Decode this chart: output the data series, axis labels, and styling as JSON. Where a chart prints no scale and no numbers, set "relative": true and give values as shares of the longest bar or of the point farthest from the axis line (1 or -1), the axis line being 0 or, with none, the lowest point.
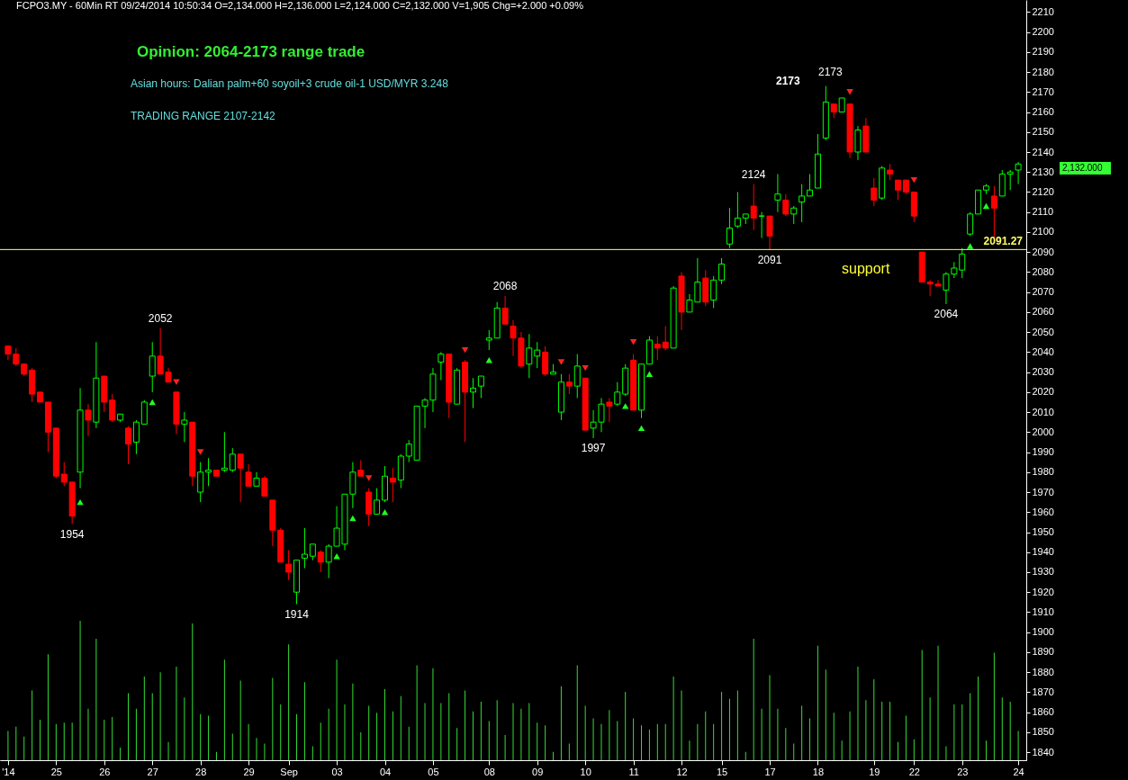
{
  "chart_data": [
    {
      "type": "candlestick",
      "title": "Opinion: 2064-2173 range trade",
      "subtitle": "Asian hours: Dalian palm+60 soyoil+3 crude oil-1 USD/MYR 3.248",
      "annotations": [
        "FCPO3.MY - 60Min RT  09/24/2014  10:50:34   O=2,134.000   H=2,136.000   L=2,124.000   C=2,132.000   V=1,905   Chg=+2.000   +0.09%",
        "TRADING RANGE 2107-2142",
        {
          "text": "1954",
          "y": 1954
        },
        {
          "text": "2052",
          "y": 2052
        },
        {
          "text": "1914",
          "y": 1914
        },
        {
          "text": "2068",
          "y": 2068
        },
        {
          "text": "1997",
          "y": 1997
        },
        {
          "text": "2124",
          "y": 2124
        },
        {
          "text": "2091",
          "y": 2091
        },
        "2173",
        "2173",
        {
          "text": "2064",
          "y": 2064
        },
        "support",
        "2,132.000"
      ],
      "categories": [
        "'14",
        null,
        null,
        null,
        null,
        null,
        "25",
        null,
        null,
        null,
        null,
        null,
        "26",
        null,
        null,
        null,
        null,
        null,
        "27",
        null,
        null,
        null,
        null,
        null,
        "28",
        null,
        null,
        null,
        null,
        null,
        "29",
        null,
        null,
        null,
        null,
        "Sep",
        null,
        null,
        null,
        null,
        null,
        "03",
        null,
        null,
        null,
        null,
        null,
        "04",
        null,
        null,
        null,
        null,
        null,
        "05",
        null,
        null,
        null,
        null,
        null,
        null,
        "08",
        null,
        null,
        null,
        null,
        null,
        "09",
        null,
        null,
        null,
        null,
        null,
        "10",
        null,
        null,
        null,
        null,
        null,
        "11",
        null,
        null,
        null,
        null,
        null,
        "12",
        null,
        null,
        null,
        null,
        "15",
        null,
        null,
        null,
        null,
        null,
        "17",
        null,
        null,
        null,
        null,
        null,
        "18",
        null,
        null,
        null,
        null,
        null,
        null,
        "19",
        null,
        null,
        null,
        null,
        "22",
        null,
        null,
        null,
        null,
        null,
        "23",
        null,
        null,
        null,
        null,
        null,
        null,
        "24"
      ],
      "ohlc": [
        [
          2043,
          2043,
          2036,
          2039
        ],
        [
          2039,
          2042,
          2033,
          2034
        ],
        [
          2034,
          2034,
          2028,
          2029
        ],
        [
          2031,
          2032,
          2015,
          2019
        ],
        [
          2020,
          2020,
          2015,
          2015
        ],
        [
          2015,
          2015,
          1990,
          2000
        ],
        [
          2002,
          2002,
          1977,
          1978
        ],
        [
          1979,
          1985,
          1973,
          1975
        ],
        [
          1975,
          1975,
          1954,
          1958
        ],
        [
          1980,
          2022,
          1972,
          2011
        ],
        [
          2011,
          2014,
          1998,
          2006
        ],
        [
          2005,
          2045,
          2002,
          2027
        ],
        [
          2028,
          2028,
          2010,
          2015
        ],
        [
          2016,
          2019,
          2005,
          2006
        ],
        [
          2006,
          2009,
          2005,
          2009
        ],
        [
          2002,
          2003,
          1984,
          1994
        ],
        [
          1995,
          2006,
          1989,
          2005
        ],
        [
          2004,
          2016,
          2004,
          2015
        ],
        [
          2028,
          2045,
          2020,
          2038
        ],
        [
          2038,
          2052,
          2029,
          2029
        ],
        [
          2030,
          2032,
          2025,
          2025
        ],
        [
          2020,
          2020,
          1999,
          2004
        ],
        [
          2004,
          2010,
          1995,
          2006
        ],
        [
          2005,
          2005,
          1973,
          1978
        ],
        [
          1970,
          1985,
          1965,
          1980
        ],
        [
          1980,
          1987,
          1973,
          1981
        ],
        [
          1981,
          1981,
          1978,
          1978
        ],
        [
          1981,
          2000,
          1980,
          1982
        ],
        [
          1981,
          1992,
          1980,
          1989
        ],
        [
          1989,
          1989,
          1965,
          1982
        ],
        [
          1980,
          1984,
          1973,
          1973
        ],
        [
          1973,
          1980,
          1973,
          1977
        ],
        [
          1977,
          1978,
          1968,
          1968
        ],
        [
          1966,
          1966,
          1943,
          1951
        ],
        [
          1951,
          1952,
          1935,
          1935
        ],
        [
          1934,
          1941,
          1926,
          1930
        ],
        [
          1920,
          1936,
          1914,
          1936
        ],
        [
          1937,
          1952,
          1932,
          1939
        ],
        [
          1938,
          1944,
          1936,
          1944
        ],
        [
          1940,
          1941,
          1930,
          1935
        ],
        [
          1935,
          1944,
          1927,
          1943
        ],
        [
          1943,
          1963,
          1943,
          1952
        ],
        [
          1944,
          1969,
          1941,
          1969
        ],
        [
          1969,
          1985,
          1962,
          1980
        ],
        [
          1981,
          1986,
          1978,
          1978
        ],
        [
          1970,
          1972,
          1953,
          1959
        ],
        [
          1959,
          1972,
          1959,
          1966
        ],
        [
          1966,
          1983,
          1965,
          1978
        ],
        [
          1977,
          1982,
          1965,
          1975
        ],
        [
          1976,
          1989,
          1972,
          1988
        ],
        [
          1988,
          1996,
          1985,
          1994
        ],
        [
          1986,
          2013,
          1986,
          2013
        ],
        [
          2013,
          2017,
          2002,
          2016
        ],
        [
          2016,
          2032,
          2010,
          2029
        ],
        [
          2035,
          2040,
          2026,
          2039
        ],
        [
          2039,
          2039,
          2007,
          2015
        ],
        [
          2014,
          2032,
          2014,
          2031
        ],
        [
          2035,
          2036,
          1995,
          2020
        ],
        [
          2020,
          2027,
          2012,
          2022
        ],
        [
          2023,
          2028,
          2017,
          2028
        ],
        [
          2046,
          2051,
          2041,
          2047
        ],
        [
          2047,
          2065,
          2047,
          2062
        ],
        [
          2062,
          2068,
          2054,
          2054
        ],
        [
          2053,
          2056,
          2038,
          2047
        ],
        [
          2047,
          2050,
          2032,
          2033
        ],
        [
          2034,
          2049,
          2027,
          2042
        ],
        [
          2038,
          2045,
          2032,
          2041
        ],
        [
          2040,
          2043,
          2028,
          2029
        ],
        [
          2029,
          2034,
          2029,
          2030
        ],
        [
          2010,
          2029,
          2006,
          2025
        ],
        [
          2025,
          2029,
          2019,
          2023
        ],
        [
          2023,
          2039,
          2017,
          2033
        ],
        [
          2027,
          2027,
          2001,
          2001
        ],
        [
          2002,
          2011,
          1997,
          2005
        ],
        [
          2005,
          2017,
          2000,
          2014
        ],
        [
          2015,
          2017,
          2005,
          2013
        ],
        [
          2014,
          2025,
          2013,
          2020
        ],
        [
          2019,
          2034,
          2018,
          2032
        ],
        [
          2036,
          2039,
          2011,
          2011
        ],
        [
          2011,
          2034,
          2007,
          2034
        ],
        [
          2034,
          2048,
          2034,
          2046
        ],
        [
          2044,
          2048,
          2036,
          2042
        ],
        [
          2045,
          2053,
          2041,
          2042
        ],
        [
          2042,
          2073,
          2042,
          2072
        ],
        [
          2078,
          2080,
          2051,
          2060
        ],
        [
          2060,
          2069,
          2060,
          2066
        ],
        [
          2065,
          2087,
          2065,
          2075
        ],
        [
          2077,
          2081,
          2063,
          2065
        ],
        [
          2066,
          2078,
          2062,
          2076
        ],
        [
          2076,
          2087,
          2074,
          2084
        ],
        [
          2094,
          2112,
          2092,
          2102
        ],
        [
          2103,
          2120,
          2102,
          2107
        ],
        [
          2107,
          2109,
          2104,
          2109
        ],
        [
          2113,
          2124,
          2101,
          2107
        ],
        [
          2108,
          2110,
          2097,
          2108
        ],
        [
          2108,
          2108,
          2091,
          2098
        ],
        [
          2116,
          2129,
          2110,
          2119
        ],
        [
          2116,
          2119,
          2108,
          2109
        ],
        [
          2109,
          2113,
          2104,
          2112
        ],
        [
          2115,
          2124,
          2105,
          2118
        ],
        [
          2118,
          2129,
          2118,
          2121
        ],
        [
          2122,
          2149,
          2122,
          2139
        ],
        [
          2147,
          2173,
          2146,
          2165
        ],
        [
          2164,
          2164,
          2157,
          2160
        ],
        [
          2160,
          2167,
          2160,
          2167
        ],
        [
          2164,
          2164,
          2137,
          2140
        ],
        [
          2140,
          2153,
          2136,
          2151
        ],
        [
          2153,
          2157,
          2140,
          2140
        ],
        [
          2122,
          2127,
          2113,
          2116
        ],
        [
          2117,
          2133,
          2116,
          2132
        ],
        [
          2131,
          2134,
          2126,
          2129
        ],
        [
          2126,
          2126,
          2116,
          2121
        ],
        [
          2126,
          2126,
          2119,
          2120
        ],
        [
          2120,
          2120,
          2105,
          2108
        ],
        [
          2090,
          2090,
          2075,
          2075
        ],
        [
          2075,
          2076,
          2068,
          2074
        ],
        [
          2074,
          2076,
          2073,
          2073
        ],
        [
          2071,
          2080,
          2064,
          2079
        ],
        [
          2079,
          2085,
          2077,
          2082
        ],
        [
          2081,
          2092,
          2077,
          2089
        ],
        [
          2099,
          2110,
          2098,
          2109
        ],
        [
          2109,
          2121,
          2109,
          2121
        ],
        [
          2121,
          2124,
          2119,
          2123
        ],
        [
          2118,
          2123,
          2097,
          2112
        ],
        [
          2118,
          2131,
          2118,
          2129
        ],
        [
          2129,
          2131,
          2121,
          2130
        ],
        [
          2131,
          2135,
          2124,
          2134
        ]
      ],
      "colors": [
        "#ff0000",
        "#ff0000",
        "#ff0000",
        "#ff0000",
        "#ff0000",
        "#ff0000",
        "#ff0000",
        "#ff0000",
        "#ff0000",
        "#00ff00",
        "#ff0000",
        "#00ff00",
        "#ff0000",
        "#ff0000",
        "#00ff00",
        "#ff0000",
        "#00ff00",
        "#00ff00",
        "#00ff00",
        "#ff0000",
        "#ff0000",
        "#ff0000",
        "#00ff00",
        "#ff0000",
        "#00ff00",
        "#00ff00",
        "#ff0000",
        "#00ff00",
        "#00ff00",
        "#ff0000",
        "#ff0000",
        "#00ff00",
        "#ff0000",
        "#ff0000",
        "#ff0000",
        "#ff0000",
        "#00ff00",
        "#00ff00",
        "#00ff00",
        "#ff0000",
        "#00ff00",
        "#00ff00",
        "#00ff00",
        "#00ff00",
        "#ff0000",
        "#ff0000",
        "#00ff00",
        "#00ff00",
        "#ff0000",
        "#00ff00",
        "#00ff00",
        "#00ff00",
        "#00ff00",
        "#00ff00",
        "#00ff00",
        "#ff0000",
        "#00ff00",
        "#ff0000",
        "#00ff00",
        "#00ff00",
        "#00ff00",
        "#00ff00",
        "#ff0000",
        "#ff0000",
        "#ff0000",
        "#00ff00",
        "#00ff00",
        "#ff0000",
        "#00ff00",
        "#00ff00",
        "#ff0000",
        "#00ff00",
        "#ff0000",
        "#00ff00",
        "#00ff00",
        "#ff0000",
        "#00ff00",
        "#00ff00",
        "#ff0000",
        "#00ff00",
        "#00ff00",
        "#ff0000",
        "#ff0000",
        "#00ff00",
        "#ff0000",
        "#00ff00",
        "#00ff00",
        "#ff0000",
        "#00ff00",
        "#00ff00",
        "#00ff00",
        "#00ff00",
        "#00ff00",
        "#ff0000",
        "#00ff00",
        "#ff0000",
        "#00ff00",
        "#ff0000",
        "#00ff00",
        "#00ff00",
        "#00ff00",
        "#00ff00",
        "#00ff00",
        "#ff0000",
        "#00ff00",
        "#ff0000",
        "#00ff00",
        "#ff0000",
        "#ff0000",
        "#00ff00",
        "#ff0000",
        "#ff0000",
        "#ff0000",
        "#ff0000",
        "#ff0000",
        "#ff0000",
        "#ff0000",
        "#00ff00",
        "#00ff00",
        "#00ff00",
        "#00ff00",
        "#00ff00",
        "#00ff00",
        "#ff0000",
        "#00ff00",
        "#00ff00",
        "#00ff00"
      ],
      "series": [
        {
          "type": "scatter",
          "color": "#22ff22",
          "marker": "triangle",
          "values": [
            null,
            null,
            null,
            null,
            null,
            null,
            null,
            null,
            null,
            1965,
            null,
            null,
            null,
            null,
            null,
            null,
            null,
            null,
            2015,
            null,
            null,
            null,
            null,
            null,
            null,
            null,
            null,
            null,
            null,
            null,
            null,
            null,
            null,
            null,
            null,
            null,
            null,
            null,
            null,
            null,
            null,
            1938,
            null,
            1957,
            null,
            null,
            null,
            1960,
            null,
            null,
            null,
            null,
            null,
            null,
            null,
            null,
            null,
            null,
            null,
            null,
            2036,
            null,
            null,
            null,
            null,
            null,
            null,
            null,
            null,
            null,
            null,
            null,
            null,
            null,
            null,
            null,
            null,
            2013,
            null,
            2002,
            2029,
            null,
            null,
            null,
            null,
            null,
            null,
            null,
            null,
            null,
            null,
            null,
            null,
            null,
            null,
            null,
            null,
            null,
            null,
            null,
            null,
            null,
            null,
            null,
            null,
            null,
            null,
            null,
            null,
            null,
            null,
            null,
            null,
            null,
            null,
            null,
            null,
            null,
            null,
            null,
            2093,
            null,
            2113,
            null,
            null,
            null,
            null
          ]
        },
        {
          "type": "scatter",
          "color": "#ff2222",
          "marker": "triangle-down",
          "values": [
            null,
            null,
            null,
            null,
            null,
            null,
            null,
            null,
            null,
            null,
            null,
            null,
            null,
            null,
            null,
            null,
            null,
            null,
            null,
            null,
            null,
            2025,
            null,
            null,
            1990,
            null,
            null,
            null,
            null,
            null,
            null,
            null,
            null,
            null,
            null,
            null,
            null,
            null,
            null,
            null,
            null,
            null,
            null,
            null,
            null,
            1977,
            null,
            null,
            null,
            null,
            null,
            null,
            null,
            null,
            null,
            null,
            null,
            2041,
            null,
            null,
            null,
            null,
            null,
            null,
            null,
            null,
            null,
            null,
            null,
            2035,
            null,
            null,
            2032,
            null,
            null,
            null,
            null,
            null,
            2045,
            null,
            null,
            null,
            null,
            null,
            null,
            null,
            null,
            null,
            null,
            null,
            null,
            null,
            null,
            null,
            null,
            null,
            null,
            null,
            null,
            null,
            null,
            null,
            null,
            null,
            null,
            2170,
            null,
            null,
            null,
            null,
            null,
            null,
            null,
            2126,
            null,
            null,
            null,
            null,
            null,
            null,
            null,
            null,
            null,
            null,
            null,
            null,
            null
          ]
        }
      ],
      "ylim": [
        1836,
        2216
      ],
      "yticks": [
        1840,
        1850,
        1860,
        1870,
        1880,
        1890,
        1900,
        1910,
        1920,
        1930,
        1940,
        1950,
        1960,
        1970,
        1980,
        1990,
        2000,
        2010,
        2020,
        2030,
        2040,
        2050,
        2060,
        2070,
        2080,
        2090,
        2100,
        2110,
        2120,
        2130,
        2140,
        2150,
        2160,
        2170,
        2180,
        2190,
        2200,
        2210
      ],
      "ref_lines": [
        {
          "axis": "y",
          "value": 2091.27,
          "label": "2091.27",
          "color": "#ffff66"
        }
      ]
    },
    {
      "type": "bar",
      "relative": true,
      "color": "#33dd33",
      "categories": [
        null,
        null,
        null,
        null,
        null,
        null,
        null,
        null,
        null,
        null,
        null,
        null,
        null,
        null,
        null,
        null,
        null,
        null,
        null,
        null,
        null,
        null,
        null,
        null,
        null,
        null,
        null,
        null,
        null,
        null,
        null,
        null,
        null,
        null,
        null,
        null,
        null,
        null,
        null,
        null,
        null,
        null,
        null,
        null,
        null,
        null,
        null,
        null,
        null,
        null,
        null,
        null,
        null,
        null,
        null,
        null,
        null,
        null,
        null,
        null,
        null,
        null,
        null,
        null,
        null,
        null,
        null,
        null,
        null,
        null,
        null,
        null,
        null,
        null,
        null,
        null,
        null,
        null,
        null,
        null,
        null,
        null,
        null,
        null,
        null,
        null,
        null,
        null,
        null,
        null,
        null,
        null,
        null,
        null,
        null,
        null,
        null,
        null,
        null,
        null,
        null,
        null,
        null,
        null,
        null,
        null,
        null,
        null,
        null,
        null,
        null,
        null,
        null,
        null,
        null,
        null,
        null,
        null,
        null,
        null,
        null,
        null,
        null,
        null,
        null,
        null,
        null
      ],
      "values": [
        0.21,
        0.24,
        0.17,
        0.5,
        0.29,
        0.76,
        0.26,
        0.27,
        0.27,
        1.0,
        0.37,
        0.87,
        0.29,
        0.31,
        0.09,
        0.48,
        0.37,
        0.6,
        0.48,
        0.63,
        0.13,
        0.67,
        0.45,
        0.98,
        0.33,
        0.32,
        0.06,
        0.72,
        0.19,
        0.57,
        0.26,
        0.16,
        0.12,
        0.59,
        0.4,
        0.83,
        0.33,
        0.56,
        0.1,
        0.27,
        0.37,
        0.72,
        0.4,
        0.55,
        0.2,
        0.39,
        0.34,
        0.51,
        0.35,
        0.46,
        0.24,
        0.68,
        0.41,
        0.66,
        0.41,
        0.48,
        0.23,
        0.5,
        0.35,
        0.42,
        0.28,
        0.43,
        0.18,
        0.41,
        0.37,
        0.41,
        0.27,
        0.25,
        0.06,
        0.53,
        0.12,
        0.68,
        0.39,
        0.3,
        0.26,
        0.36,
        0.28,
        0.49,
        0.3,
        0.25,
        0.22,
        0.26,
        0.26,
        0.6,
        0.5,
        0.14,
        0.26,
        0.35,
        0.26,
        0.49,
        0.44,
        0.5,
        0.06,
        0.87,
        0.37,
        0.61,
        0.37,
        0.23,
        0.12,
        0.39,
        0.3,
        0.82,
        0.65,
        0.34,
        0.14,
        0.35,
        0.67,
        0.43,
        0.58,
        0.42,
        0.42,
        0.13,
        0.32,
        0.15,
        0.79,
        0.45,
        0.82,
        0.1,
        0.4,
        0.4,
        0.48,
        0.6,
        0.14,
        0.77,
        0.45,
        0.42,
        0.21
      ]
    }
  ]
}
